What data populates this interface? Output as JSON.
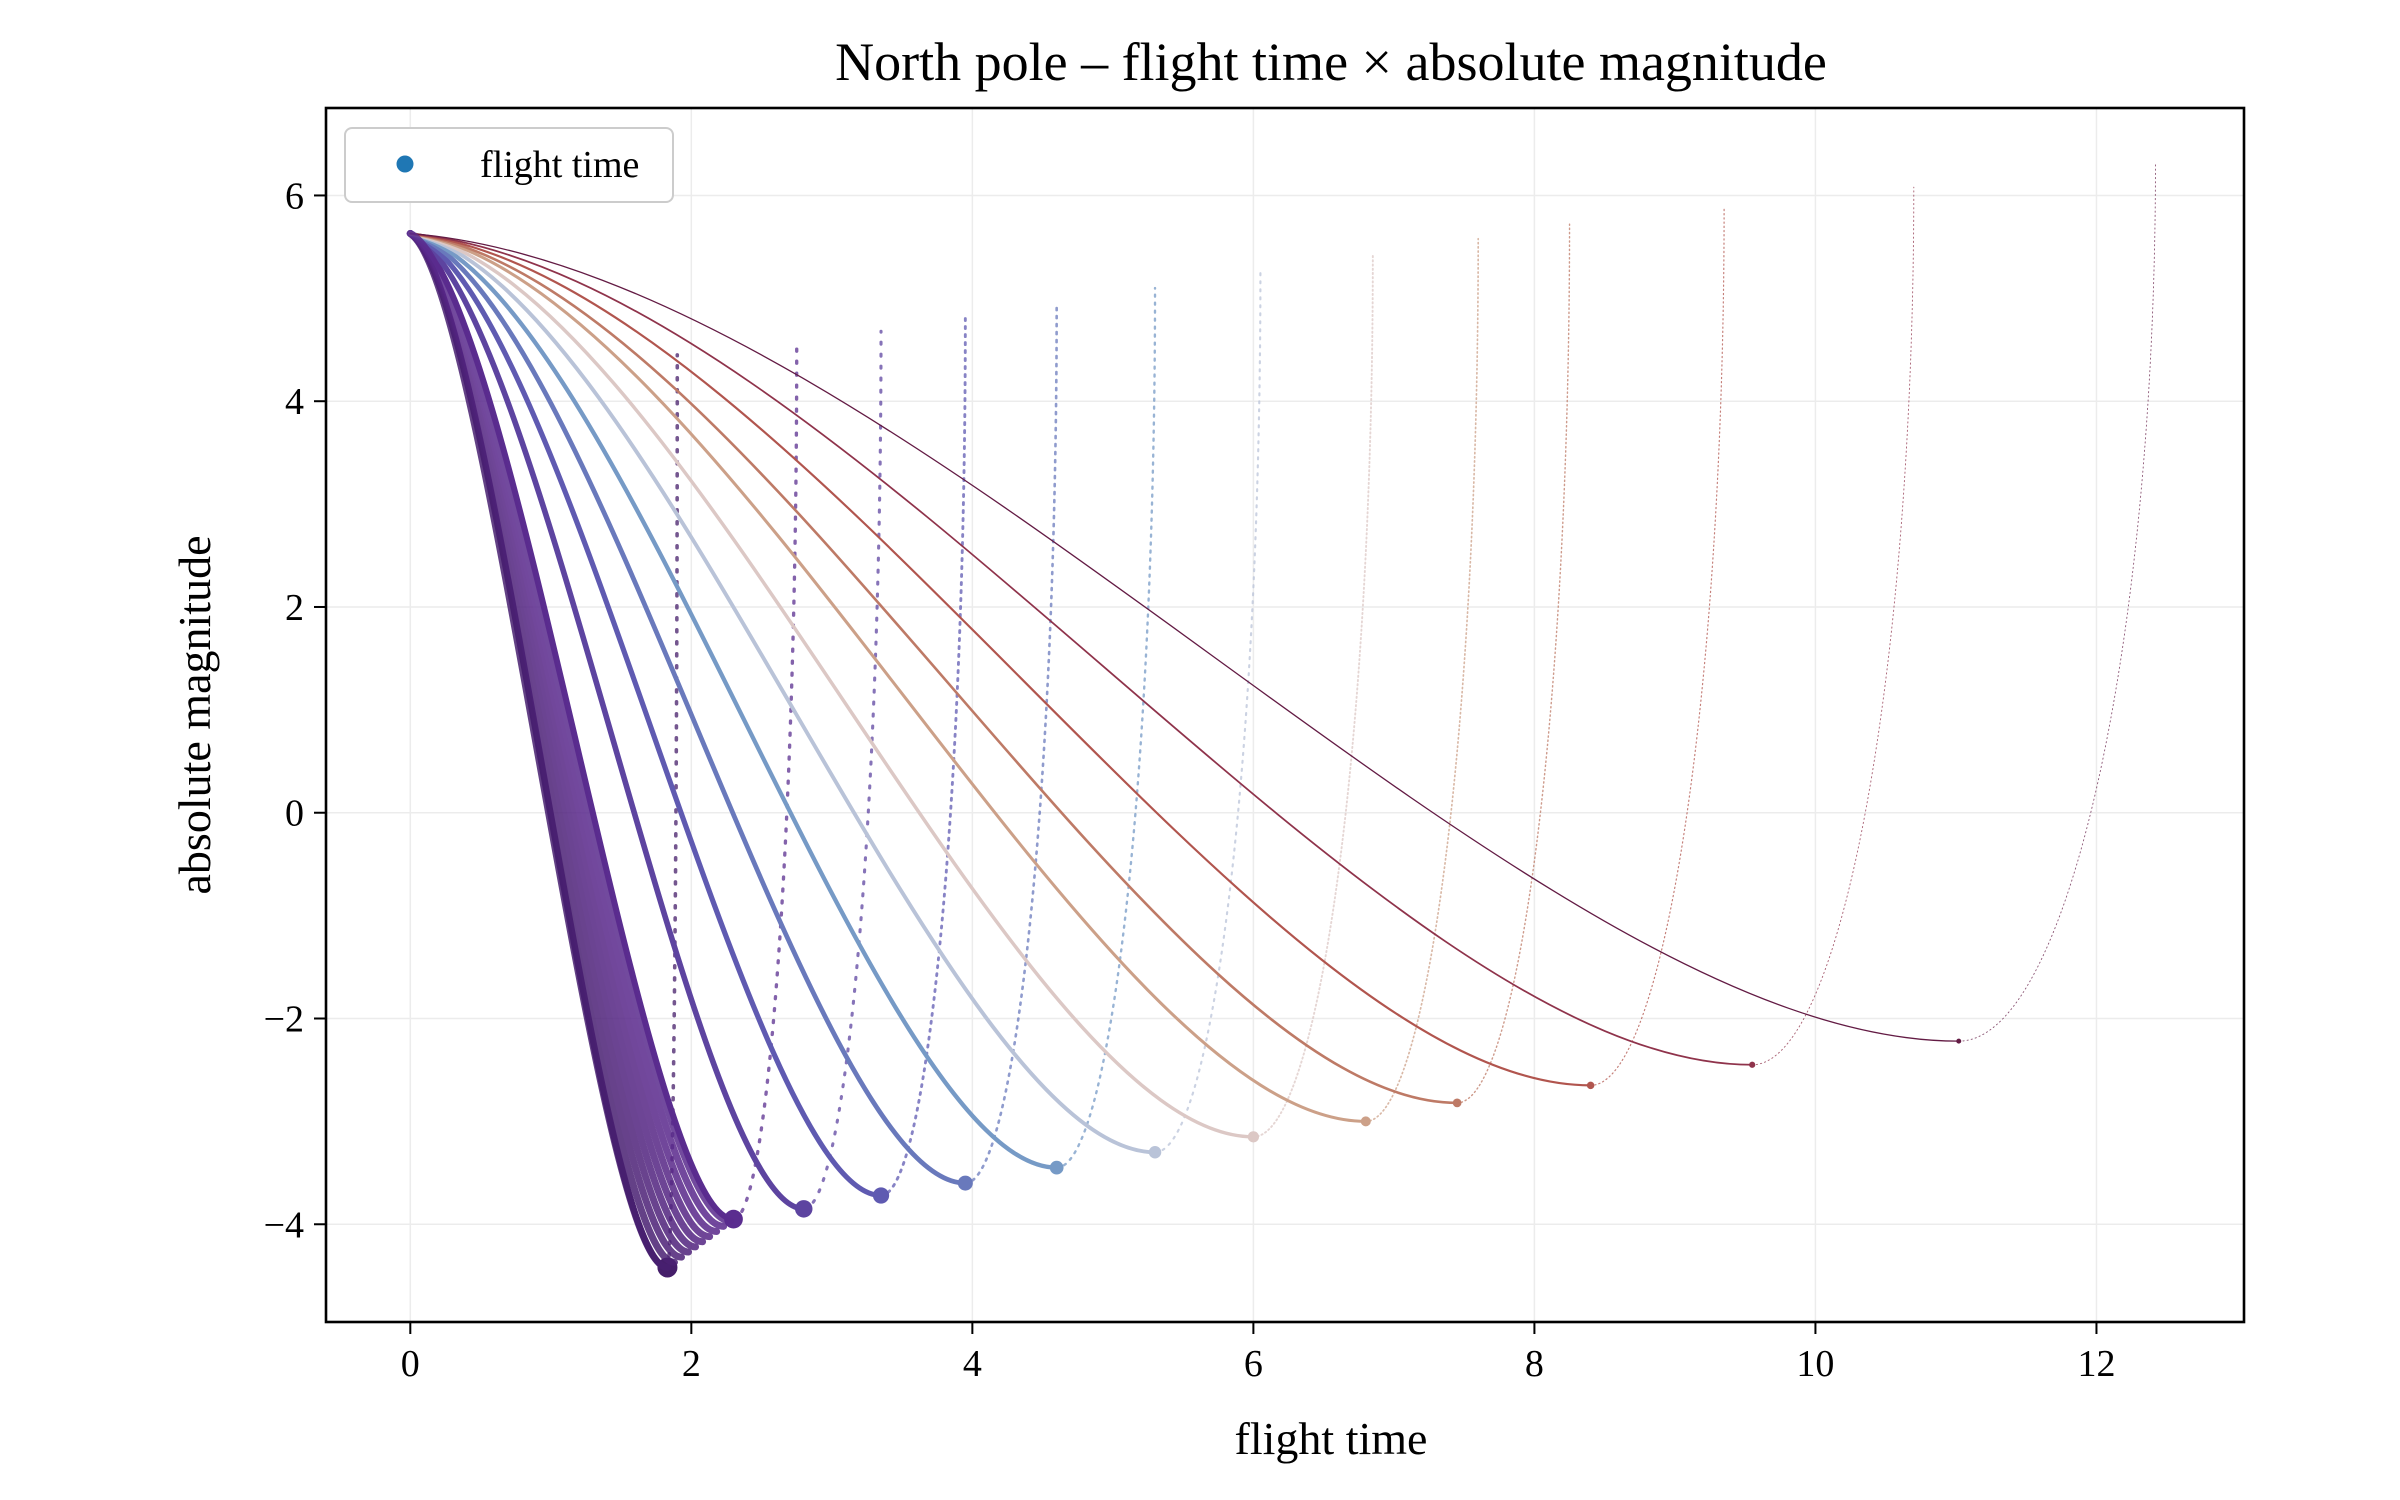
{
  "chart_data": {
    "type": "scatter",
    "title": "North pole – flight time × absolute magnitude",
    "xlabel": "flight time",
    "ylabel": "absolute magnitude",
    "xlim": [
      -0.6,
      13.05
    ],
    "ylim": [
      -4.95,
      6.85
    ],
    "x_ticks": [
      0,
      2,
      4,
      6,
      8,
      10,
      12
    ],
    "x_tick_labels": [
      "0",
      "2",
      "4",
      "6",
      "8",
      "10",
      "12"
    ],
    "y_ticks": [
      -4,
      -2,
      0,
      2,
      4,
      6
    ],
    "y_tick_labels": [
      "−4",
      "−2",
      "0",
      "2",
      "4",
      "6"
    ],
    "grid": true,
    "legend": {
      "position": "top-left",
      "entries": [
        {
          "label": "flight time",
          "color": "#1f77b4"
        }
      ]
    },
    "colormap": "twilight_shifted (dark purple → blue → white → red → dark purple)",
    "series": [
      {
        "start": [
          0,
          5.63
        ],
        "minimum": [
          1.83,
          -4.42
        ],
        "end": [
          1.9,
          4.45
        ]
      },
      {
        "start": [
          0,
          5.63
        ],
        "minimum": [
          2.3,
          -3.95
        ],
        "end": [
          2.75,
          4.55
        ]
      },
      {
        "start": [
          0,
          5.63
        ],
        "minimum": [
          2.8,
          -3.85
        ],
        "end": [
          3.35,
          4.68
        ]
      },
      {
        "start": [
          0,
          5.63
        ],
        "minimum": [
          3.35,
          -3.72
        ],
        "end": [
          3.95,
          4.82
        ]
      },
      {
        "start": [
          0,
          5.63
        ],
        "minimum": [
          3.95,
          -3.6
        ],
        "end": [
          4.6,
          4.95
        ]
      },
      {
        "start": [
          0,
          5.63
        ],
        "minimum": [
          4.6,
          -3.45
        ],
        "end": [
          5.3,
          5.1
        ]
      },
      {
        "start": [
          0,
          5.63
        ],
        "minimum": [
          5.3,
          -3.3
        ],
        "end": [
          6.05,
          5.25
        ]
      },
      {
        "start": [
          0,
          5.63
        ],
        "minimum": [
          6.0,
          -3.15
        ],
        "end": [
          6.85,
          5.42
        ]
      },
      {
        "start": [
          0,
          5.63
        ],
        "minimum": [
          6.8,
          -3.0
        ],
        "end": [
          7.6,
          5.58
        ]
      },
      {
        "start": [
          0,
          5.63
        ],
        "minimum": [
          7.45,
          -2.82
        ],
        "end": [
          8.25,
          5.72
        ]
      },
      {
        "start": [
          0,
          5.63
        ],
        "minimum": [
          8.4,
          -2.65
        ],
        "end": [
          9.35,
          5.88
        ]
      },
      {
        "start": [
          0,
          5.63
        ],
        "minimum": [
          9.55,
          -2.45
        ],
        "end": [
          10.7,
          6.08
        ]
      },
      {
        "start": [
          0,
          5.63
        ],
        "minimum": [
          11.02,
          -2.22
        ],
        "end": [
          12.42,
          6.32
        ]
      }
    ]
  }
}
